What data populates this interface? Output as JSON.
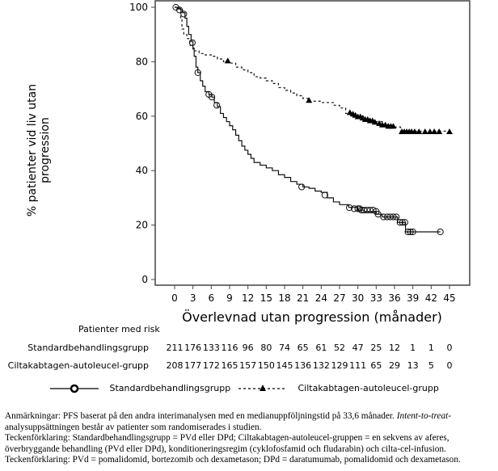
{
  "chart_data": {
    "type": "line",
    "title": "",
    "xlabel": "Överlevnad utan progression (månader)",
    "ylabel": "% patienter vid liv utan progression",
    "xlim": [
      0,
      45
    ],
    "ylim": [
      0,
      100
    ],
    "xticks": [
      0,
      3,
      6,
      9,
      12,
      15,
      18,
      21,
      24,
      27,
      30,
      33,
      36,
      39,
      42,
      45
    ],
    "yticks": [
      0,
      20,
      40,
      60,
      80,
      100
    ],
    "legend_position": "bottom",
    "series": [
      {
        "name": "Standardbehandlingsgrupp",
        "style": "solid",
        "marker": "open-circle",
        "end": 43.5,
        "steps": [
          [
            0,
            100
          ],
          [
            0.5,
            99.5
          ],
          [
            1,
            99
          ],
          [
            1.3,
            98
          ],
          [
            1.7,
            96
          ],
          [
            2,
            93
          ],
          [
            2.3,
            90
          ],
          [
            2.7,
            87.5
          ],
          [
            3,
            85
          ],
          [
            3.2,
            82
          ],
          [
            3.5,
            78
          ],
          [
            3.8,
            76
          ],
          [
            4.2,
            73
          ],
          [
            4.6,
            71
          ],
          [
            5,
            69
          ],
          [
            5.6,
            68
          ],
          [
            6.1,
            67
          ],
          [
            6.5,
            65
          ],
          [
            7,
            63.5
          ],
          [
            7.5,
            61
          ],
          [
            8,
            59.5
          ],
          [
            8.5,
            58
          ],
          [
            9,
            56.5
          ],
          [
            9.5,
            55
          ],
          [
            10,
            53
          ],
          [
            10.5,
            51
          ],
          [
            11,
            49
          ],
          [
            11.5,
            47.5
          ],
          [
            12,
            46
          ],
          [
            12.5,
            44.5
          ],
          [
            13,
            43
          ],
          [
            14,
            42
          ],
          [
            15,
            41
          ],
          [
            16,
            40
          ],
          [
            17,
            38.5
          ],
          [
            18,
            37.5
          ],
          [
            19,
            36
          ],
          [
            20,
            35
          ],
          [
            21,
            34
          ],
          [
            22,
            33.5
          ],
          [
            23,
            32.5
          ],
          [
            24,
            32
          ],
          [
            25,
            30
          ],
          [
            26,
            28.5
          ],
          [
            27,
            27.5
          ],
          [
            28.5,
            26.5
          ],
          [
            30,
            25.5
          ],
          [
            31,
            25
          ],
          [
            33,
            24
          ],
          [
            34,
            23
          ],
          [
            36.5,
            21
          ],
          [
            37.8,
            17.5
          ]
        ],
        "censored": [
          [
            0.2,
            100
          ],
          [
            0.8,
            99
          ],
          [
            1.5,
            97.5
          ],
          [
            2.9,
            87
          ],
          [
            3.8,
            76
          ],
          [
            5.6,
            68
          ],
          [
            6.1,
            67
          ],
          [
            6.9,
            64
          ],
          [
            20.8,
            34
          ],
          [
            24.6,
            31
          ],
          [
            28.6,
            26.4
          ],
          [
            29.4,
            26
          ],
          [
            30,
            26
          ],
          [
            30.3,
            26
          ],
          [
            30.6,
            25.5
          ],
          [
            31,
            25.5
          ],
          [
            31.5,
            25.5
          ],
          [
            32,
            25.5
          ],
          [
            32.5,
            25.5
          ],
          [
            33,
            25
          ],
          [
            33.3,
            24
          ],
          [
            34.2,
            23
          ],
          [
            34.8,
            23
          ],
          [
            35.3,
            23
          ],
          [
            35.8,
            23
          ],
          [
            36.3,
            23
          ],
          [
            36.9,
            21
          ],
          [
            37.3,
            21
          ],
          [
            37.7,
            21
          ],
          [
            38.2,
            17.5
          ],
          [
            38.6,
            17.5
          ],
          [
            39,
            17.5
          ],
          [
            43.5,
            17.5
          ]
        ]
      },
      {
        "name": "Ciltakabtagen-autoleucel-grupp",
        "style": "dashed",
        "marker": "filled-triangle",
        "end": 45,
        "steps": [
          [
            0,
            100
          ],
          [
            0.8,
            99
          ],
          [
            1,
            96
          ],
          [
            1.2,
            92
          ],
          [
            1.5,
            90
          ],
          [
            2,
            88.5
          ],
          [
            2.5,
            86
          ],
          [
            3,
            84
          ],
          [
            4,
            83
          ],
          [
            5,
            82.5
          ],
          [
            6,
            82
          ],
          [
            7,
            81
          ],
          [
            8,
            80
          ],
          [
            9,
            79.5
          ],
          [
            10,
            78
          ],
          [
            11,
            77
          ],
          [
            12,
            76
          ],
          [
            13,
            74.5
          ],
          [
            14,
            74
          ],
          [
            15,
            73
          ],
          [
            16,
            72
          ],
          [
            17,
            70.5
          ],
          [
            18,
            69.5
          ],
          [
            19,
            68.5
          ],
          [
            20,
            67.5
          ],
          [
            21,
            66.5
          ],
          [
            22,
            65.5
          ],
          [
            24,
            65
          ],
          [
            26,
            64
          ],
          [
            27,
            63
          ],
          [
            28,
            61
          ],
          [
            29,
            60
          ],
          [
            31,
            59
          ],
          [
            32.5,
            58
          ],
          [
            34,
            57
          ],
          [
            35,
            56
          ],
          [
            37,
            54.5
          ]
        ],
        "censored": [
          [
            8.7,
            80
          ],
          [
            22,
            65.5
          ],
          [
            28.7,
            61
          ],
          [
            29.2,
            60.5
          ],
          [
            29.6,
            60
          ],
          [
            30,
            59.5
          ],
          [
            30.4,
            59.5
          ],
          [
            30.8,
            59
          ],
          [
            31.2,
            58.5
          ],
          [
            31.6,
            58.5
          ],
          [
            32,
            58
          ],
          [
            32.4,
            58
          ],
          [
            32.8,
            57.5
          ],
          [
            33.5,
            57
          ],
          [
            34,
            56.5
          ],
          [
            34.5,
            56.5
          ],
          [
            35,
            56
          ],
          [
            35.4,
            56
          ],
          [
            35.8,
            56
          ],
          [
            37.2,
            54
          ],
          [
            37.6,
            54
          ],
          [
            38,
            54
          ],
          [
            38.4,
            54
          ],
          [
            38.8,
            54
          ],
          [
            39.3,
            54
          ],
          [
            40,
            54
          ],
          [
            41,
            54
          ],
          [
            41.8,
            54
          ],
          [
            42.5,
            54
          ],
          [
            43.3,
            54
          ],
          [
            45,
            54
          ]
        ]
      }
    ]
  },
  "risk_table": {
    "header": "Patienter med risk",
    "rows": [
      {
        "label": "Standardbehandlingsgrupp",
        "values": [
          "211",
          "176",
          "133",
          "116",
          "96",
          "80",
          "74",
          "65",
          "61",
          "52",
          "47",
          "25",
          "12",
          "1",
          "1",
          "0"
        ]
      },
      {
        "label": "Ciltakabtagen-autoleucel-grupp",
        "values": [
          "208",
          "177",
          "172",
          "165",
          "157",
          "150",
          "145",
          "136",
          "132",
          "129",
          "111",
          "65",
          "29",
          "13",
          "5",
          "0"
        ]
      }
    ]
  },
  "legend": {
    "standard": "Standardbehandlingsgrupp",
    "cilta": "Ciltakabtagen-autoleucel-grupp"
  },
  "footnotes": {
    "l1a": "Anmärkningar: PFS baserat på den andra interimanalysen med en medianuppföljningstid på 33,6 månader. ",
    "l1b": "Intent-to-treat",
    "l1c": "-",
    "l2": "analysuppsättningen består av patienter som randomiserades i studien.",
    "l3": "Teckenförklaring: Standardbehandlingsgrupp = PVd eller DPd; Ciltakabtagen-autoleucel-gruppen = en sekvens av aferes,",
    "l4": "överbryggande behandling (PVd eller DPd), konditioneringsregim (cyklofosfamid och fludarabin) och cilta-cel-infusion.",
    "l5": "Teckenförklaring: PVd = pomalidomid, bortezomib och dexametason; DPd = daratumumab, pomalidomid och dexametason."
  }
}
